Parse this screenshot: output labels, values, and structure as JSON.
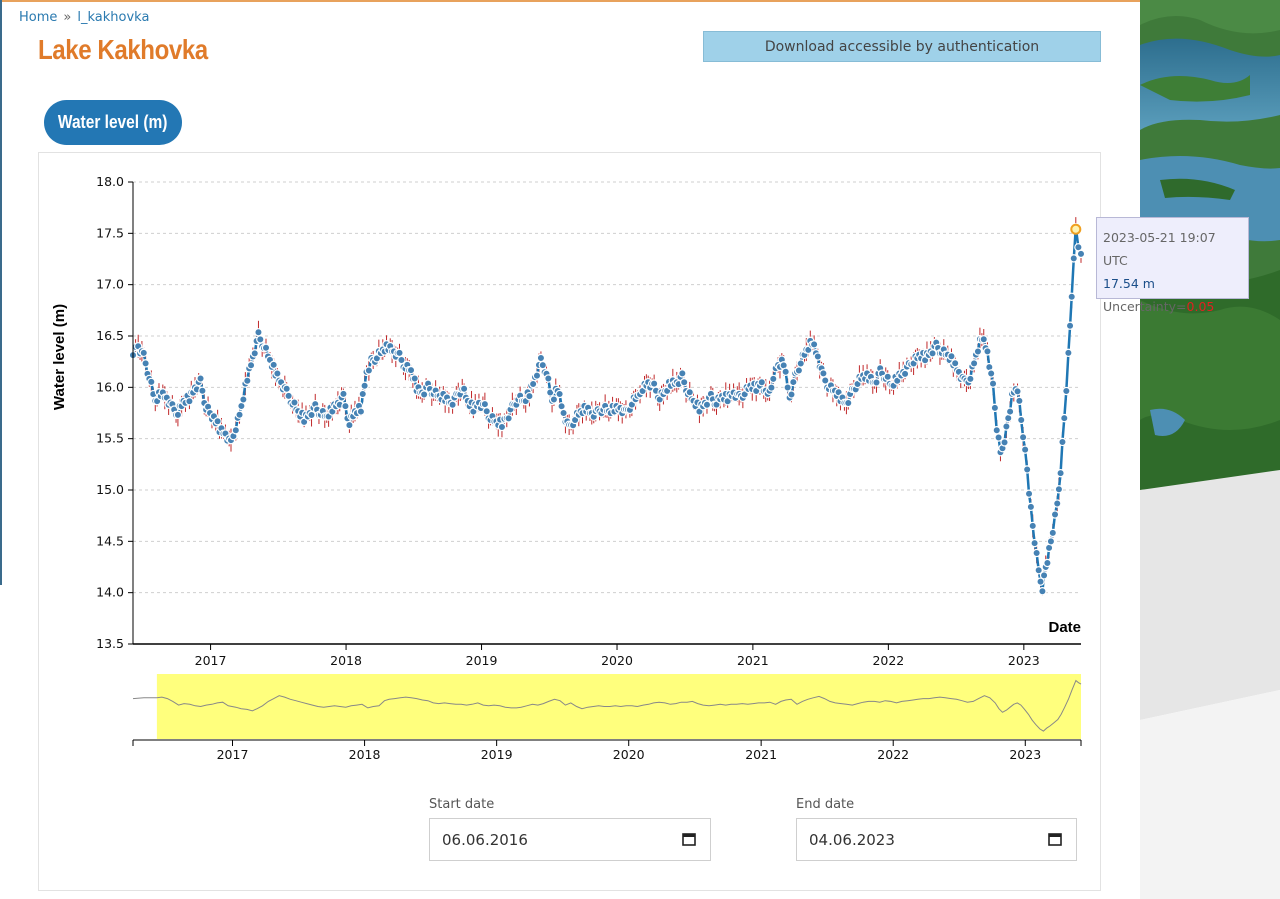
{
  "breadcrumb": {
    "home": "Home",
    "separator": "»",
    "current": "l_kakhovka"
  },
  "page_title": "Lake Kakhovka",
  "download_label": "Download accessible by authentication",
  "tab_label": "Water level (m)",
  "tooltip": {
    "date": "2023-05-21 19:07 UTC",
    "value": "17.54 m",
    "uncertainty_label": "Uncertainty=",
    "uncertainty_value": "0.05"
  },
  "filters": {
    "start_label": "Start date",
    "start_value": "06.06.2016",
    "end_label": "End date",
    "end_value": "04.06.2023"
  },
  "colors": {
    "line": "#1f77b4",
    "marker": "#4682b4",
    "error_bar": "#c0282a",
    "brush": "#ffff66",
    "title": "#e07b2a"
  },
  "chart_data": {
    "type": "line",
    "ylabel": "Water level (m)",
    "xlabel": "Date",
    "ylim": [
      13.5,
      18.0
    ],
    "yticks": [
      "13.5",
      "14.0",
      "14.5",
      "15.0",
      "15.5",
      "16.0",
      "16.5",
      "17.0",
      "17.5",
      "18.0"
    ],
    "xlim": [
      "2016-06-06",
      "2023-06-04"
    ],
    "xticks": [
      "2017",
      "2018",
      "2019",
      "2020",
      "2021",
      "2022",
      "2023"
    ],
    "overview_xlim": [
      "2016-04-01",
      "2023-06-04"
    ],
    "overview_ylim": [
      13.5,
      18.0
    ],
    "grid": true,
    "error_bars": true,
    "highlight": {
      "x": "2023-05-21",
      "y": 17.54
    },
    "series": [
      {
        "x": [
          "2016-04-01",
          "2016-05-01",
          "2016-06-06",
          "2016-06-20",
          "2016-07-05",
          "2016-07-20",
          "2016-08-05",
          "2016-08-20",
          "2016-09-05",
          "2016-09-20",
          "2016-10-05",
          "2016-10-20",
          "2016-11-05",
          "2016-11-20",
          "2016-12-05",
          "2016-12-20",
          "2017-01-10",
          "2017-01-25",
          "2017-02-10",
          "2017-02-25",
          "2017-03-10",
          "2017-03-25",
          "2017-04-10",
          "2017-04-25",
          "2017-05-10",
          "2017-05-25",
          "2017-06-10",
          "2017-06-25",
          "2017-07-10",
          "2017-07-25",
          "2017-08-10",
          "2017-08-25",
          "2017-09-10",
          "2017-09-25",
          "2017-10-10",
          "2017-10-25",
          "2017-11-10",
          "2017-11-25",
          "2017-12-10",
          "2017-12-25",
          "2018-01-10",
          "2018-01-25",
          "2018-02-10",
          "2018-02-25",
          "2018-03-10",
          "2018-03-25",
          "2018-04-10",
          "2018-04-25",
          "2018-05-10",
          "2018-05-25",
          "2018-06-10",
          "2018-06-25",
          "2018-07-10",
          "2018-07-25",
          "2018-08-10",
          "2018-08-25",
          "2018-09-10",
          "2018-09-25",
          "2018-10-10",
          "2018-10-25",
          "2018-11-10",
          "2018-11-25",
          "2018-12-10",
          "2018-12-25",
          "2019-01-10",
          "2019-01-25",
          "2019-02-10",
          "2019-02-25",
          "2019-03-10",
          "2019-03-25",
          "2019-04-10",
          "2019-04-25",
          "2019-05-10",
          "2019-05-25",
          "2019-06-10",
          "2019-06-25",
          "2019-07-10",
          "2019-07-25",
          "2019-08-10",
          "2019-08-25",
          "2019-09-10",
          "2019-09-25",
          "2019-10-10",
          "2019-10-25",
          "2019-11-10",
          "2019-11-25",
          "2019-12-10",
          "2019-12-25",
          "2020-01-10",
          "2020-01-25",
          "2020-02-10",
          "2020-02-25",
          "2020-03-10",
          "2020-03-25",
          "2020-04-10",
          "2020-04-25",
          "2020-05-10",
          "2020-05-25",
          "2020-06-10",
          "2020-06-25",
          "2020-07-10",
          "2020-07-25",
          "2020-08-10",
          "2020-08-25",
          "2020-09-10",
          "2020-09-25",
          "2020-10-10",
          "2020-10-25",
          "2020-11-10",
          "2020-11-25",
          "2020-12-10",
          "2020-12-25",
          "2021-01-10",
          "2021-01-25",
          "2021-02-10",
          "2021-02-25",
          "2021-03-10",
          "2021-03-25",
          "2021-04-10",
          "2021-04-25",
          "2021-05-10",
          "2021-05-25",
          "2021-06-10",
          "2021-06-25",
          "2021-07-10",
          "2021-07-25",
          "2021-08-10",
          "2021-08-25",
          "2021-09-10",
          "2021-09-25",
          "2021-10-10",
          "2021-10-25",
          "2021-11-10",
          "2021-11-25",
          "2021-12-10",
          "2021-12-25",
          "2022-01-10",
          "2022-01-25",
          "2022-02-10",
          "2022-02-25",
          "2022-03-10",
          "2022-03-25",
          "2022-04-10",
          "2022-04-25",
          "2022-05-10",
          "2022-05-25",
          "2022-06-10",
          "2022-06-25",
          "2022-07-10",
          "2022-07-25",
          "2022-08-10",
          "2022-08-25",
          "2022-09-10",
          "2022-09-25",
          "2022-10-10",
          "2022-10-20",
          "2022-10-30",
          "2022-11-10",
          "2022-11-20",
          "2022-11-30",
          "2022-12-10",
          "2022-12-20",
          "2022-12-30",
          "2023-01-10",
          "2023-01-20",
          "2023-01-30",
          "2023-02-10",
          "2023-02-20",
          "2023-03-01",
          "2023-03-10",
          "2023-03-20",
          "2023-04-01",
          "2023-04-10",
          "2023-04-20",
          "2023-05-01",
          "2023-05-10",
          "2023-05-21",
          "2023-05-28",
          "2023-06-04"
        ],
        "y": [
          16.3,
          16.35,
          16.35,
          16.4,
          16.3,
          16.1,
          15.85,
          15.95,
          15.9,
          15.8,
          15.75,
          15.85,
          15.9,
          16.0,
          16.05,
          15.8,
          15.7,
          15.6,
          15.55,
          15.45,
          15.6,
          15.8,
          16.1,
          16.3,
          16.5,
          16.4,
          16.25,
          16.15,
          16.05,
          15.95,
          15.85,
          15.75,
          15.7,
          15.75,
          15.8,
          15.75,
          15.7,
          15.8,
          15.85,
          15.9,
          15.65,
          15.75,
          15.8,
          16.15,
          16.25,
          16.3,
          16.35,
          16.4,
          16.35,
          16.3,
          16.2,
          16.15,
          16.0,
          15.95,
          16.0,
          15.95,
          15.9,
          15.9,
          15.85,
          15.9,
          16.0,
          15.85,
          15.8,
          15.85,
          15.8,
          15.7,
          15.65,
          15.65,
          15.7,
          15.8,
          15.9,
          15.85,
          15.95,
          16.1,
          16.25,
          16.15,
          15.85,
          16.0,
          15.75,
          15.6,
          15.7,
          15.75,
          15.8,
          15.75,
          15.75,
          15.8,
          15.75,
          15.8,
          15.8,
          15.75,
          15.85,
          15.9,
          16.0,
          16.05,
          16.0,
          15.9,
          15.95,
          16.05,
          16.05,
          16.1,
          15.95,
          15.85,
          15.8,
          15.85,
          15.9,
          15.85,
          15.9,
          15.9,
          15.95,
          15.9,
          15.95,
          16.0,
          16.0,
          16.05,
          15.9,
          16.1,
          16.2,
          16.25,
          15.9,
          16.1,
          16.25,
          16.35,
          16.45,
          16.3,
          16.1,
          16.0,
          15.95,
          15.9,
          15.85,
          15.95,
          16.05,
          16.1,
          16.1,
          16.05,
          16.15,
          16.1,
          16.0,
          16.1,
          16.15,
          16.2,
          16.25,
          16.3,
          16.3,
          16.35,
          16.4,
          16.35,
          16.3,
          16.25,
          16.15,
          16.05,
          16.1,
          16.3,
          16.5,
          16.35,
          16.0,
          15.6,
          15.35,
          15.5,
          15.7,
          15.9,
          16.0,
          15.85,
          15.55,
          15.2,
          14.8,
          14.5,
          14.2,
          14.05,
          14.25,
          14.4,
          14.6,
          14.85,
          15.2,
          15.7,
          16.3,
          16.9,
          17.54,
          17.4,
          17.3
        ]
      }
    ]
  }
}
